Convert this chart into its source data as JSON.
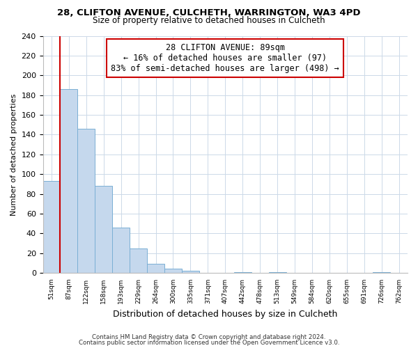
{
  "title": "28, CLIFTON AVENUE, CULCHETH, WARRINGTON, WA3 4PD",
  "subtitle": "Size of property relative to detached houses in Culcheth",
  "xlabel": "Distribution of detached houses by size in Culcheth",
  "ylabel": "Number of detached properties",
  "bin_labels": [
    "51sqm",
    "87sqm",
    "122sqm",
    "158sqm",
    "193sqm",
    "229sqm",
    "264sqm",
    "300sqm",
    "335sqm",
    "371sqm",
    "407sqm",
    "442sqm",
    "478sqm",
    "513sqm",
    "549sqm",
    "584sqm",
    "620sqm",
    "655sqm",
    "691sqm",
    "726sqm",
    "762sqm"
  ],
  "bar_values": [
    93,
    186,
    146,
    88,
    46,
    25,
    9,
    4,
    2,
    0,
    0,
    1,
    0,
    1,
    0,
    0,
    0,
    0,
    0,
    1,
    0
  ],
  "bar_color": "#c5d8ed",
  "bar_edge_color": "#7aafd4",
  "vline_x": 1,
  "vline_color": "#cc0000",
  "annotation_line1": "28 CLIFTON AVENUE: 89sqm",
  "annotation_line2": "← 16% of detached houses are smaller (97)",
  "annotation_line3": "83% of semi-detached houses are larger (498) →",
  "annotation_box_edge": "#cc0000",
  "ylim": [
    0,
    240
  ],
  "yticks": [
    0,
    20,
    40,
    60,
    80,
    100,
    120,
    140,
    160,
    180,
    200,
    220,
    240
  ],
  "footer_line1": "Contains HM Land Registry data © Crown copyright and database right 2024.",
  "footer_line2": "Contains public sector information licensed under the Open Government Licence v3.0.",
  "background_color": "#ffffff",
  "grid_color": "#ccd9e8"
}
